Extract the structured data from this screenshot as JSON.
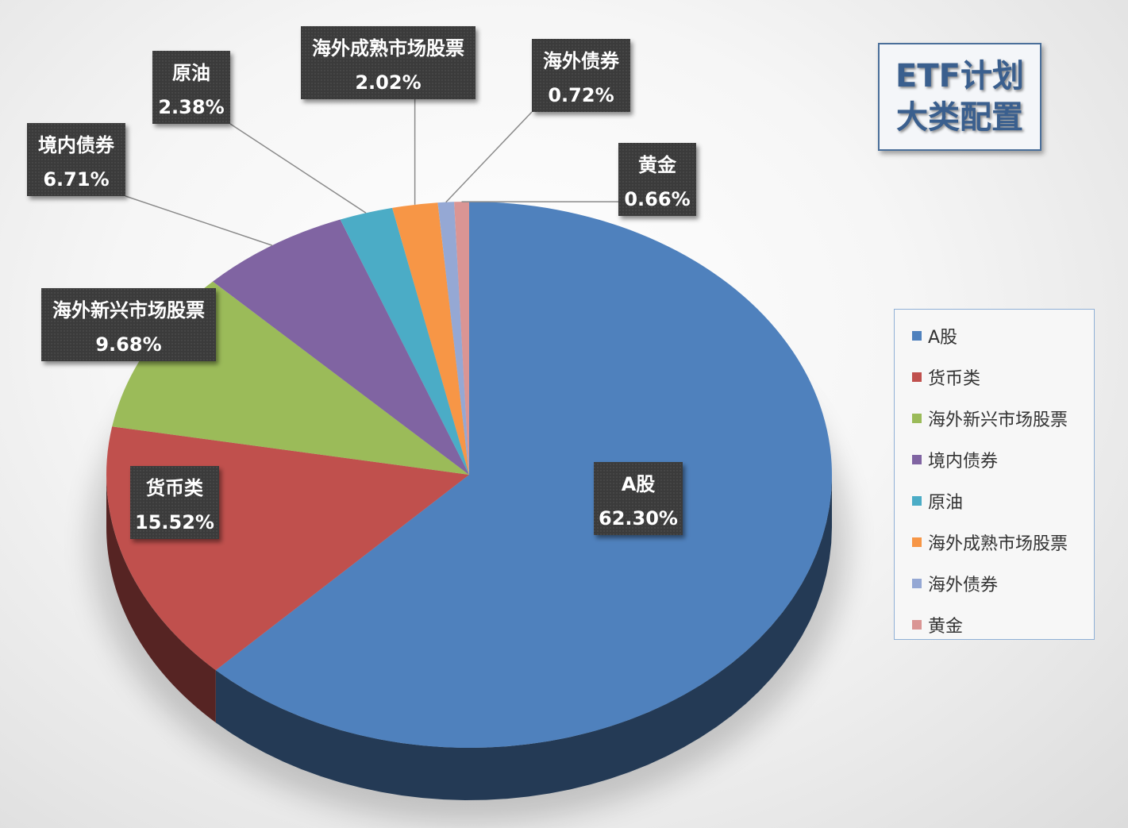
{
  "chart_data": {
    "type": "pie",
    "title": [
      "ETF计划",
      "大类配置"
    ],
    "categories": [
      "A股",
      "货币类",
      "海外新兴市场股票",
      "境内债券",
      "原油",
      "海外成熟市场股票",
      "海外债券",
      "黄金"
    ],
    "values": [
      62.3,
      15.52,
      9.68,
      6.71,
      2.38,
      2.02,
      0.72,
      0.66
    ],
    "value_labels": [
      "62.30%",
      "15.52%",
      "9.68%",
      "6.71%",
      "2.38%",
      "2.02%",
      "0.72%",
      "0.66%"
    ],
    "colors": [
      "#4f81bd",
      "#c0504d",
      "#9bbb59",
      "#8064a2",
      "#4bacc6",
      "#f79646",
      "#95a8d4",
      "#da9594"
    ],
    "legend": "right",
    "style": "3d"
  }
}
